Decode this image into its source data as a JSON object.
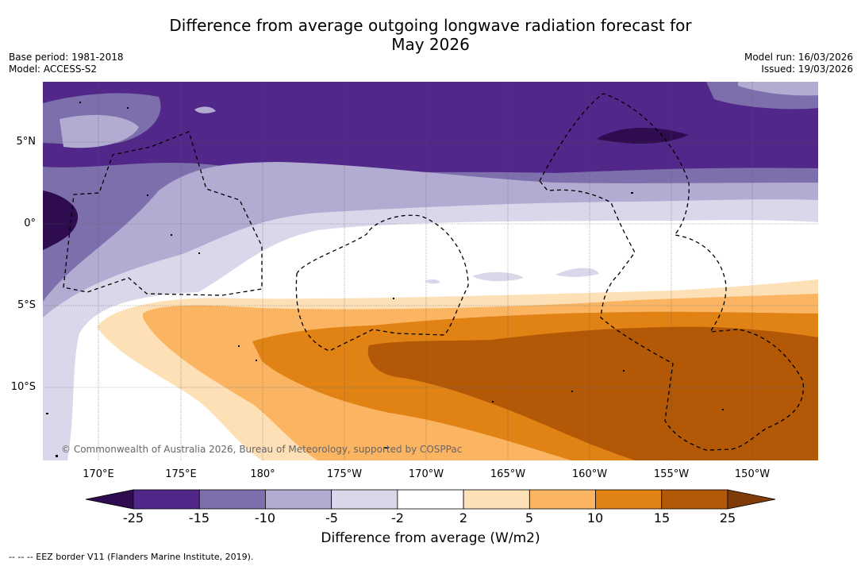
{
  "header": {
    "title_line1": "Difference from average outgoing longwave radiation forecast for",
    "title_line2": "May 2026",
    "base_period": "Base period: 1981-2018",
    "model": "Model: ACCESS-S2",
    "model_run": "Model run: 16/03/2026",
    "issued": "Issued: 19/03/2026"
  },
  "map": {
    "latitude_labels": [
      "5°N",
      "0°",
      "5°S",
      "10°S"
    ],
    "longitude_labels": [
      "170°E",
      "175°E",
      "180°",
      "175°W",
      "170°W",
      "165°W",
      "160°W",
      "155°W",
      "150°W"
    ],
    "copyright": "© Commonwealth of Australia 2026, Bureau of Meteorology, supported by COSPPac"
  },
  "colorbar": {
    "tick_labels": [
      "-25",
      "-15",
      "-10",
      "-5",
      "-2",
      "2",
      "5",
      "10",
      "15",
      "25"
    ],
    "label": "Difference from average (W/m2)",
    "colors": [
      "#2e0c4f",
      "#52278a",
      "#7c6fab",
      "#b2abd2",
      "#d8d8ea",
      "#ffffff",
      "#fee0b6",
      "#fbb461",
      "#e08214",
      "#b35806",
      "#7f3b08"
    ]
  },
  "legend": {
    "eez_text": "-- -- -- EEZ border V11 (Flanders Marine Institute, 2019)."
  }
}
